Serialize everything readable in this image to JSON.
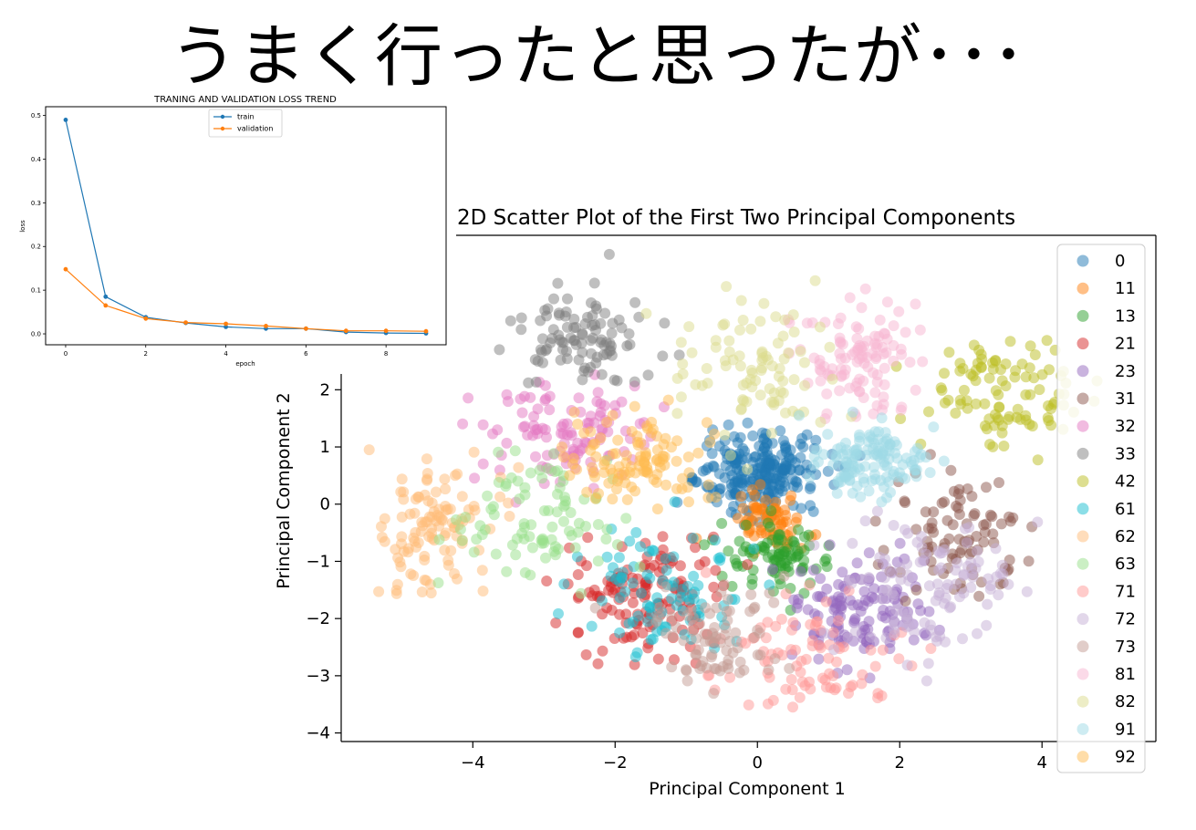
{
  "slide": {
    "title": "うまく行ったと思ったが･･･"
  },
  "chart_data": [
    {
      "type": "line",
      "title": "TRANING AND VALIDATION LOSS TREND",
      "xlabel": "epoch",
      "ylabel": "loss",
      "xlim": [
        -0.5,
        9.5
      ],
      "ylim": [
        -0.025,
        0.52
      ],
      "xticks": [
        0,
        2,
        4,
        6,
        8
      ],
      "yticks": [
        0.0,
        0.1,
        0.2,
        0.3,
        0.4,
        0.5
      ],
      "x": [
        0,
        1,
        2,
        3,
        4,
        5,
        6,
        7,
        8,
        9
      ],
      "series": [
        {
          "name": "train",
          "color": "#1f77b4",
          "values": [
            0.49,
            0.085,
            0.038,
            0.025,
            0.016,
            0.012,
            0.012,
            0.004,
            0.002,
            0.001
          ]
        },
        {
          "name": "validation",
          "color": "#ff7f0e",
          "values": [
            0.148,
            0.065,
            0.035,
            0.026,
            0.023,
            0.018,
            0.012,
            0.007,
            0.007,
            0.006
          ]
        }
      ],
      "legend": "top-center",
      "grid": false
    },
    {
      "type": "scatter",
      "title": "2D Scatter Plot of the First Two Principal Components",
      "xlabel": "Principal Component 1",
      "ylabel": "Principal Component 2",
      "xlim": [
        -5.85,
        5.6
      ],
      "ylim": [
        -4.15,
        4.7
      ],
      "xticks": [
        -4,
        -2,
        0,
        2,
        4
      ],
      "yticks": [
        -4,
        -3,
        -2,
        -1,
        0,
        1,
        2
      ],
      "legend": "right",
      "grid": false,
      "series": [
        {
          "name": "0",
          "color": "#1f77b4",
          "center": [
            0.0,
            0.55
          ],
          "spread": [
            0.45,
            0.35
          ],
          "count": 240
        },
        {
          "name": "11",
          "color": "#ff7f0e",
          "center": [
            0.1,
            -0.3
          ],
          "spread": [
            0.3,
            0.25
          ],
          "count": 70
        },
        {
          "name": "13",
          "color": "#2ca02c",
          "center": [
            0.4,
            -0.9
          ],
          "spread": [
            0.4,
            0.3
          ],
          "count": 90
        },
        {
          "name": "21",
          "color": "#d62728",
          "center": [
            -1.6,
            -1.6
          ],
          "spread": [
            0.55,
            0.5
          ],
          "count": 140
        },
        {
          "name": "23",
          "color": "#9467bd",
          "center": [
            1.4,
            -1.8
          ],
          "spread": [
            0.5,
            0.5
          ],
          "count": 130
        },
        {
          "name": "31",
          "color": "#8c564b",
          "center": [
            2.8,
            -0.5
          ],
          "spread": [
            0.45,
            0.5
          ],
          "count": 90
        },
        {
          "name": "32",
          "color": "#e377c2",
          "center": [
            -2.7,
            1.3
          ],
          "spread": [
            0.6,
            0.45
          ],
          "count": 110
        },
        {
          "name": "33",
          "color": "#7f7f7f",
          "center": [
            -2.4,
            2.8
          ],
          "spread": [
            0.45,
            0.45
          ],
          "count": 100
        },
        {
          "name": "42",
          "color": "#bcbd22",
          "center": [
            3.5,
            1.9
          ],
          "spread": [
            0.6,
            0.45
          ],
          "count": 100
        },
        {
          "name": "61",
          "color": "#17becf",
          "center": [
            -1.3,
            -1.5
          ],
          "spread": [
            0.6,
            0.55
          ],
          "count": 90
        },
        {
          "name": "62",
          "color": "#ffbb78",
          "center": [
            -4.5,
            -0.4
          ],
          "spread": [
            0.45,
            0.55
          ],
          "count": 110
        },
        {
          "name": "63",
          "color": "#98df8a",
          "center": [
            -3.0,
            -0.3
          ],
          "spread": [
            0.55,
            0.5
          ],
          "count": 90
        },
        {
          "name": "71",
          "color": "#ff9896",
          "center": [
            0.8,
            -2.6
          ],
          "spread": [
            0.65,
            0.5
          ],
          "count": 90
        },
        {
          "name": "72",
          "color": "#c5b0d5",
          "center": [
            2.4,
            -1.4
          ],
          "spread": [
            0.6,
            0.55
          ],
          "count": 110
        },
        {
          "name": "73",
          "color": "#c49c94",
          "center": [
            -0.6,
            -2.3
          ],
          "spread": [
            0.55,
            0.5
          ],
          "count": 80
        },
        {
          "name": "81",
          "color": "#f7b6d2",
          "center": [
            1.5,
            2.5
          ],
          "spread": [
            0.45,
            0.55
          ],
          "count": 110
        },
        {
          "name": "82",
          "color": "#dbdb8d",
          "center": [
            -0.2,
            2.3
          ],
          "spread": [
            0.5,
            0.6
          ],
          "count": 90
        },
        {
          "name": "91",
          "color": "#9edae5",
          "center": [
            1.6,
            0.7
          ],
          "spread": [
            0.4,
            0.35
          ],
          "count": 130
        },
        {
          "name": "92",
          "color": "#ffbb51",
          "center": [
            -1.7,
            0.8
          ],
          "spread": [
            0.5,
            0.4
          ],
          "count": 110
        }
      ]
    }
  ]
}
